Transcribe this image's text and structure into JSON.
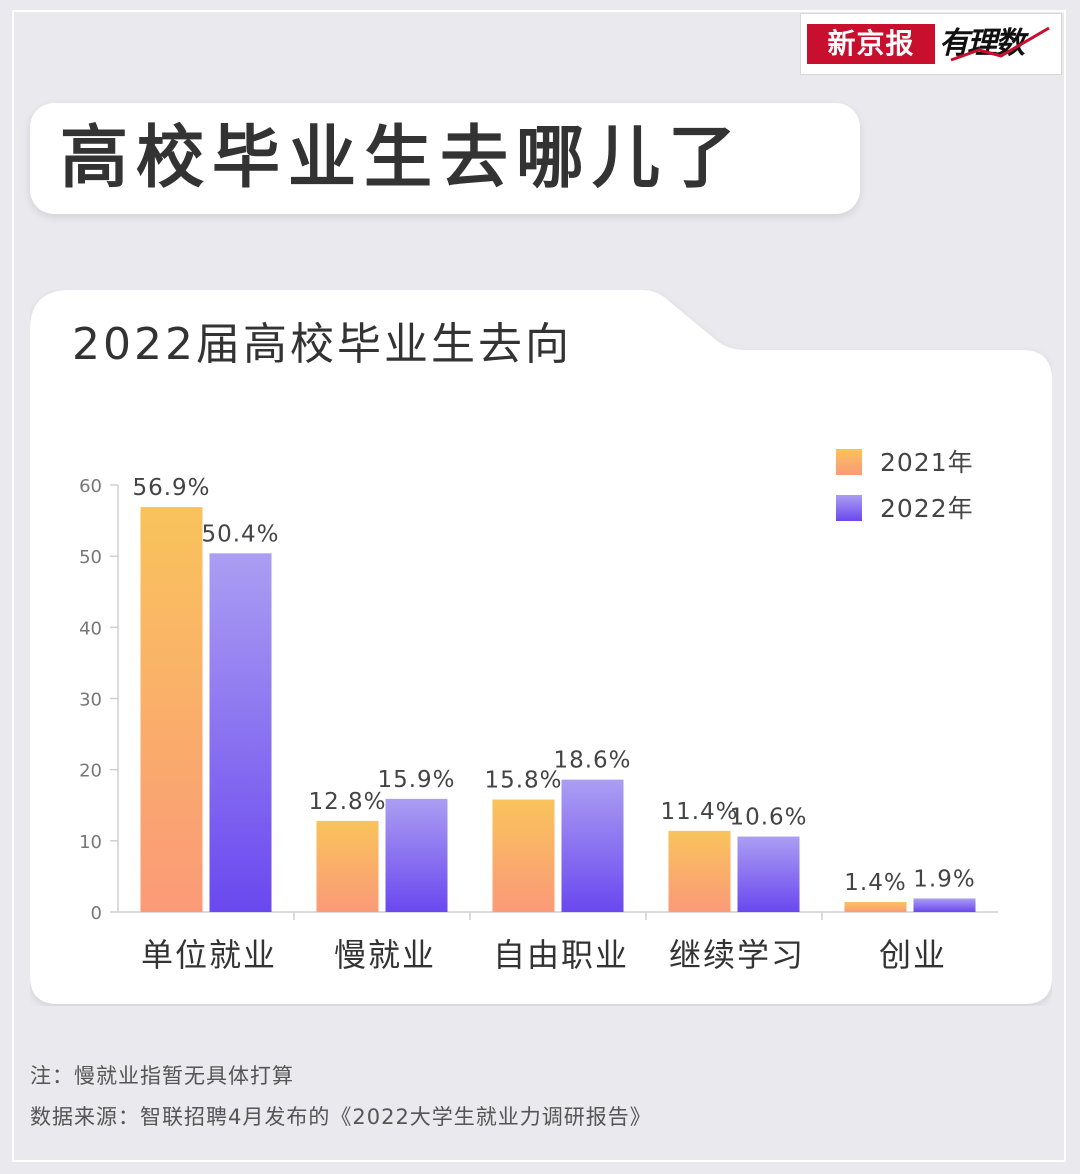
{
  "logo": {
    "paper": "新京报",
    "column": "有理数"
  },
  "headline": "高校毕业生去哪儿了",
  "chart_data": {
    "type": "bar",
    "title": "2022届高校毕业生去向",
    "categories": [
      "单位就业",
      "慢就业",
      "自由职业",
      "继续学习",
      "创业"
    ],
    "series": [
      {
        "name": "2021年",
        "values": [
          56.9,
          12.8,
          15.8,
          11.4,
          1.4
        ],
        "labels": [
          "56.9%",
          "12.8%",
          "15.8%",
          "11.4%",
          "1.4%"
        ]
      },
      {
        "name": "2022年",
        "values": [
          50.4,
          15.9,
          18.6,
          10.6,
          1.9
        ],
        "labels": [
          "50.4%",
          "15.9%",
          "18.6%",
          "10.6%",
          "1.9%"
        ]
      }
    ],
    "yticks": [
      0,
      10,
      20,
      30,
      40,
      50,
      60
    ],
    "ylim": [
      0,
      60
    ],
    "xlabel": "",
    "ylabel": "",
    "legend_position": "top-right",
    "grid": false,
    "colors": {
      "2021": {
        "top": "#f9c35c",
        "bottom": "#fb9a78"
      },
      "2022": {
        "top": "#ab9ef2",
        "bottom": "#6a48ef"
      }
    }
  },
  "notes": {
    "note": "注：慢就业指暂无具体打算",
    "source": "数据来源：智联招聘4月发布的《2022大学生就业力调研报告》"
  }
}
